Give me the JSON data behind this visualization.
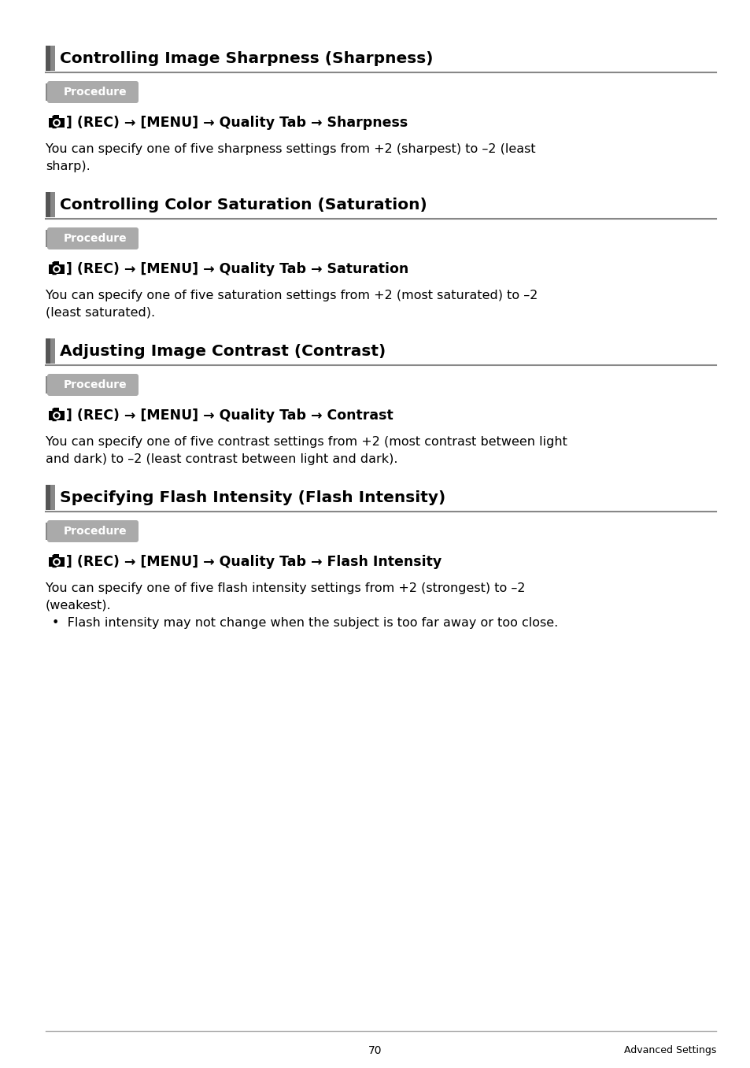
{
  "bg_color": "#ffffff",
  "text_color": "#000000",
  "sections": [
    {
      "title": "Controlling Image Sharpness (Sharpness)",
      "procedure_label": "Procedure",
      "nav_line": "(REC) → [MENU] → Quality Tab → Sharpness",
      "body_text": "You can specify one of five sharpness settings from +2 (sharpest) to –2 (least sharp).",
      "bullet_lines": []
    },
    {
      "title": "Controlling Color Saturation (Saturation)",
      "procedure_label": "Procedure",
      "nav_line": "(REC) → [MENU] → Quality Tab → Saturation",
      "body_text": "You can specify one of five saturation settings from +2 (most saturated) to –2 (least saturated).",
      "bullet_lines": []
    },
    {
      "title": "Adjusting Image Contrast (Contrast)",
      "procedure_label": "Procedure",
      "nav_line": "(REC) → [MENU] → Quality Tab → Contrast",
      "body_text": "You can specify one of five contrast settings from +2 (most contrast between light and dark) to –2 (least contrast between light and dark).",
      "bullet_lines": []
    },
    {
      "title": "Specifying Flash Intensity (Flash Intensity)",
      "procedure_label": "Procedure",
      "nav_line": "(REC) → [MENU] → Quality Tab → Flash Intensity",
      "body_text": "You can specify one of five flash intensity settings from +2 (strongest) to –2 (weakest).",
      "bullet_lines": [
        "Flash intensity may not change when the subject is too far away or too close."
      ]
    }
  ],
  "footer_page": "70",
  "footer_right": "Advanced Settings"
}
